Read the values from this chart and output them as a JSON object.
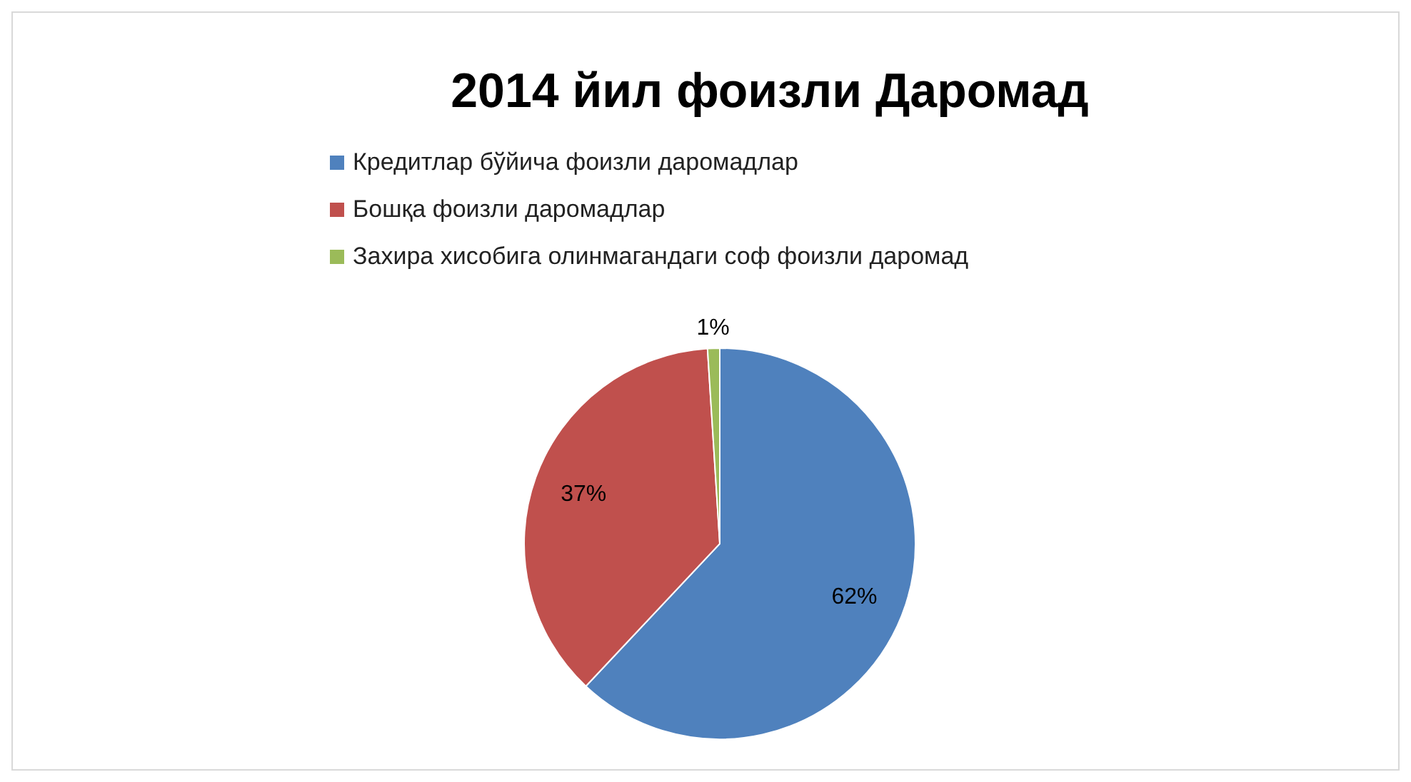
{
  "chart_data": {
    "type": "pie",
    "title": "2014 йил фоизли Даромад",
    "categories": [
      "Кредитлар бўйича фоизли даромадлар",
      "Бошқа фоизли даромадлар",
      "Захира хисобига олинмагандаги соф фоизли даромад"
    ],
    "values": [
      62,
      37,
      1
    ],
    "colors": [
      "#4f81bd",
      "#c0504d",
      "#9bbb59"
    ],
    "value_labels": [
      "62%",
      "37%",
      "1%"
    ],
    "legend": "top"
  }
}
